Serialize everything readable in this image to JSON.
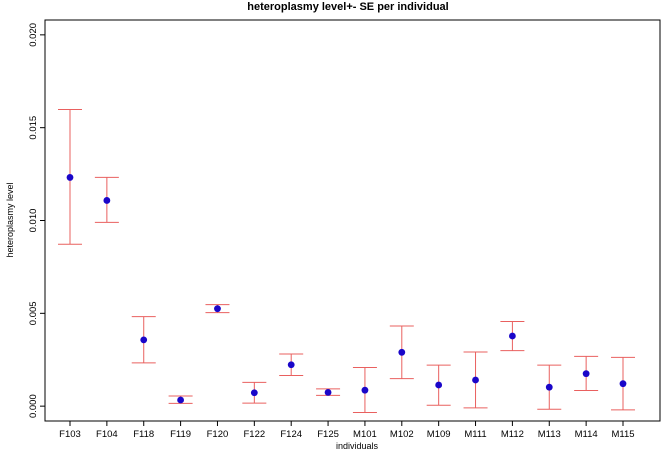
{
  "chart_data": {
    "type": "scatter",
    "title": "heteroplasmy level+- SE per individual",
    "xlabel": "individuals",
    "ylabel": "heteroplasmy level",
    "ylim": [
      -0.0008,
      0.0208
    ],
    "yticks": [
      0.0,
      0.005,
      0.01,
      0.015,
      0.02
    ],
    "ytick_labels": [
      "0.000",
      "0.005",
      "0.010",
      "0.015",
      "0.020"
    ],
    "categories": [
      "F103",
      "F104",
      "F118",
      "F119",
      "F120",
      "F122",
      "F124",
      "F125",
      "M101",
      "M102",
      "M109",
      "M111",
      "M112",
      "M113",
      "M114",
      "M115"
    ],
    "values": [
      0.01232,
      0.01108,
      0.00357,
      0.00033,
      0.00525,
      0.00072,
      0.00223,
      0.00074,
      0.00086,
      0.0029,
      0.00114,
      0.00141,
      0.00378,
      0.00102,
      0.00175,
      0.00121
    ],
    "lower": [
      0.00872,
      0.0099,
      0.00233,
      0.00015,
      0.00504,
      0.00016,
      0.00165,
      0.00058,
      -0.00034,
      0.00148,
      5e-05,
      -9e-05,
      0.00299,
      -0.00017,
      0.00084,
      -0.0002
    ],
    "upper": [
      0.01598,
      0.01232,
      0.00482,
      0.00055,
      0.00547,
      0.00128,
      0.00281,
      0.00093,
      0.00208,
      0.00432,
      0.00221,
      0.00292,
      0.00456,
      0.00221,
      0.00268,
      0.00263
    ],
    "colors": {
      "point": "#1a06c9",
      "error_bar": "#e9605f",
      "axis": "#000000"
    }
  }
}
